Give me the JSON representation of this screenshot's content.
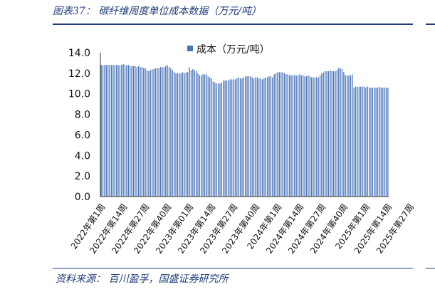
{
  "caption": "图表37：  碳纤维周度单位成本数据（万元/吨）",
  "source": "资料来源：  百川盈孚，国盛证券研究所",
  "colors": {
    "bar": "#4a74b8",
    "axis": "#333333",
    "rule": "#1f3d7a"
  },
  "chart_data": {
    "type": "bar",
    "title": "",
    "xlabel": "",
    "ylabel": "",
    "ylim": [
      0,
      14
    ],
    "yticks": [
      "0.0",
      "2.0",
      "4.0",
      "6.0",
      "8.0",
      "10.0",
      "12.0",
      "14.0"
    ],
    "legend": "top-center",
    "x_tick_labels": [
      "2022年第1周",
      "2022年第14周",
      "2022年第27周",
      "2022年第40周",
      "2023年第01周",
      "2023年第14周",
      "2023年第27周",
      "2023年第40周",
      "2024年第1周",
      "2024年第14周",
      "2024年第27周",
      "2024年第40周",
      "2025年第1周",
      "2025年第14周",
      "2025年第27周"
    ],
    "series": [
      {
        "name": "成本（万元/吨）",
        "values": [
          12.8,
          12.8,
          12.8,
          12.8,
          12.8,
          12.8,
          12.8,
          12.8,
          12.8,
          12.8,
          12.8,
          12.8,
          12.8,
          12.9,
          12.8,
          12.8,
          12.8,
          12.7,
          12.7,
          12.7,
          12.7,
          12.6,
          12.7,
          12.6,
          12.6,
          12.5,
          12.5,
          12.3,
          12.2,
          12.3,
          12.4,
          12.4,
          12.5,
          12.5,
          12.5,
          12.6,
          12.6,
          12.6,
          12.7,
          12.8,
          12.6,
          12.5,
          12.3,
          12.1,
          12.0,
          12.0,
          12.0,
          12.0,
          12.1,
          12.0,
          12.1,
          12.1,
          12.6,
          12.3,
          12.4,
          12.3,
          12.2,
          12.0,
          11.8,
          11.8,
          11.9,
          11.9,
          11.9,
          11.7,
          11.6,
          11.5,
          11.2,
          11.1,
          11.0,
          11.0,
          11.0,
          11.1,
          11.3,
          11.3,
          11.3,
          11.3,
          11.4,
          11.4,
          11.4,
          11.4,
          11.5,
          11.6,
          11.5,
          11.5,
          11.6,
          11.7,
          11.7,
          11.7,
          11.7,
          11.6,
          11.5,
          11.6,
          11.6,
          11.5,
          11.5,
          11.4,
          11.5,
          11.6,
          11.6,
          11.7,
          11.7,
          11.6,
          11.9,
          12.0,
          12.1,
          12.1,
          12.1,
          12.1,
          12.0,
          11.9,
          11.9,
          11.8,
          11.8,
          11.8,
          11.8,
          11.8,
          11.8,
          11.9,
          11.8,
          11.8,
          11.7,
          11.7,
          11.8,
          11.7,
          11.6,
          11.6,
          11.6,
          11.6,
          11.6,
          11.8,
          12.0,
          12.1,
          12.2,
          12.2,
          12.2,
          12.3,
          12.2,
          12.2,
          12.2,
          12.3,
          12.5,
          12.5,
          12.4,
          12.1,
          11.8,
          11.8,
          11.8,
          11.8,
          11.9,
          10.6,
          10.7,
          10.7,
          10.7,
          10.7,
          10.7,
          10.7,
          10.6,
          10.7,
          10.6,
          10.6,
          10.6,
          10.6,
          10.6,
          10.6,
          10.7,
          10.6,
          10.6,
          10.6,
          10.6,
          10.6
        ]
      }
    ]
  }
}
